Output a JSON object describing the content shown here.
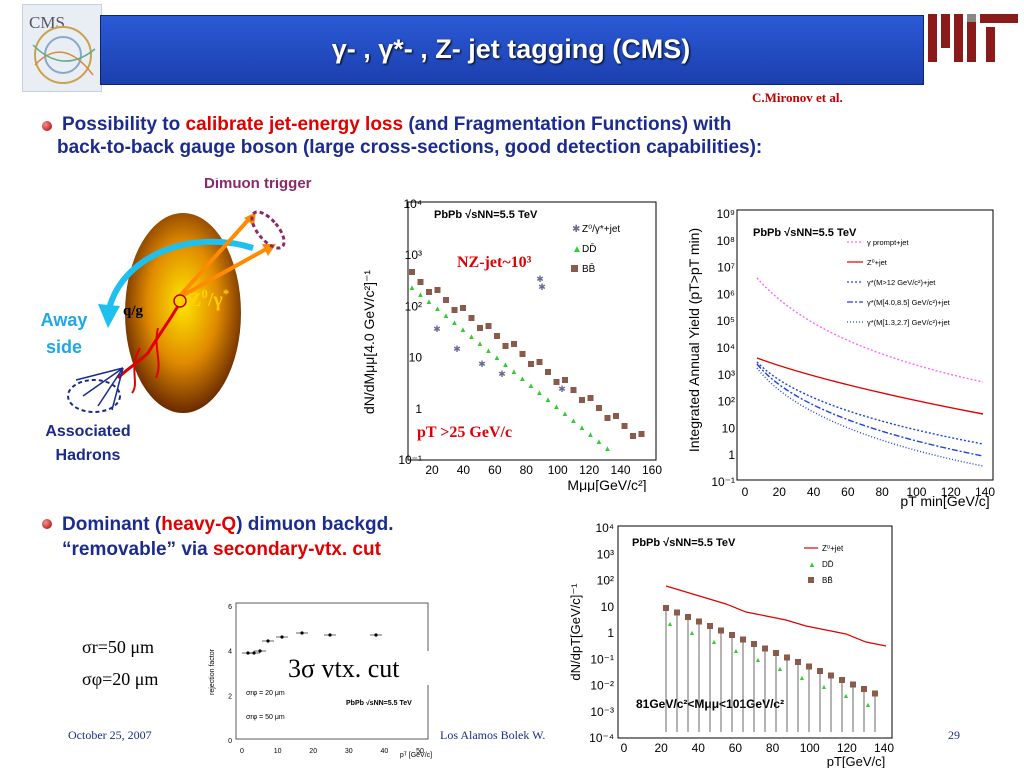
{
  "header": {
    "title": "γ- , γ*- , Z- jet tagging (CMS)",
    "cms_logo_text": "CMS",
    "credit": "C.Mironov et al."
  },
  "bullet1": {
    "line1_pre": "Possibility to ",
    "line1_red": "calibrate jet-energy loss",
    "line1_post": " (and Fragmentation Functions) with",
    "line2": "back-to-back gauge boson (large cross-sections, good detection capabilities):"
  },
  "diagram": {
    "dimuon_trigger": "Dimuon trigger",
    "away": "Away",
    "side": "side",
    "qg": "q/g",
    "boson": "Z",
    "associated": "Associated",
    "hadrons": "Hadrons"
  },
  "plot1": {
    "ylabel": "dN/dMμμ[4.0 GeV/c²]⁻¹",
    "xlabel": "Mμμ[GeV/c²]",
    "collision": "PbPb √sNN=5.5 TeV",
    "legend": [
      "Z⁰/γ*+jet",
      "DD̄",
      "BB̄"
    ],
    "n_label": "NZ-jet~10³",
    "pt_cut": "pT >25 GeV/c",
    "xticks": [
      "20",
      "40",
      "60",
      "80",
      "100",
      "120",
      "140",
      "160"
    ],
    "yticks": [
      "10⁴",
      "10³",
      "10²",
      "10",
      "1",
      "10⁻¹"
    ]
  },
  "plot2": {
    "ylabel": "Integrated Annual Yield (pT>pT min)",
    "xlabel": "pT min[GeV/c]",
    "collision": "PbPb √sNN=5.5 TeV",
    "legend": [
      "γ prompt+jet",
      "Z⁰+jet",
      "γ*(M>12 GeV/c²)+jet",
      "γ*(M[4.0,8.5] GeV/c²)+jet",
      "γ*(M[1.3,2.7] GeV/c²)+jet"
    ],
    "xticks": [
      "0",
      "20",
      "40",
      "60",
      "80",
      "100",
      "120",
      "140"
    ],
    "yticks": [
      "10⁹",
      "10⁸",
      "10⁷",
      "10⁶",
      "10⁵",
      "10⁴",
      "10³",
      "10²",
      "10",
      "1",
      "10⁻¹"
    ]
  },
  "bullet2": {
    "line1_pre": "Dominant (",
    "line1_red": "heavy-Q",
    "line1_post": ") dimuon backgd.",
    "line2_pre": "“removable” via ",
    "line2_red": "secondary-vtx. cut"
  },
  "plot3": {
    "ylabel": "dN/dpT[GeV/c]⁻¹",
    "xlabel": "pT[GeV/c]",
    "collision": "PbPb √sNN=5.5 TeV",
    "legend": [
      "Z⁰+jet",
      "DD̄",
      "BB̄"
    ],
    "mass_window": "81GeV/c²<Mμμ<101GeV/c²",
    "xticks": [
      "0",
      "20",
      "40",
      "60",
      "80",
      "100",
      "120",
      "140"
    ],
    "yticks": [
      "10⁴",
      "10³",
      "10²",
      "10",
      "1",
      "10⁻¹",
      "10⁻²",
      "10⁻³",
      "10⁻⁴"
    ]
  },
  "plot4": {
    "ylabel": "rejection factor",
    "xlabel": "pᵀ [GeV/c]",
    "collision": "PbPb √sNN=5.5 TeV",
    "legend": [
      "σrφ = 20 μm",
      "σrφ = 50 μm"
    ],
    "xticks": [
      "0",
      "10",
      "20",
      "30",
      "40",
      "50"
    ],
    "yticks": [
      "6",
      "4",
      "2",
      "0"
    ],
    "overlay": "3σ vtx. cut"
  },
  "resolution": {
    "sigma_r": "σr=50 μm",
    "sigma_phi": "σφ=20 μm"
  },
  "footer": {
    "date": "October 25, 2007",
    "venue": "Los Alamos Bolek W.",
    "page": "29"
  }
}
